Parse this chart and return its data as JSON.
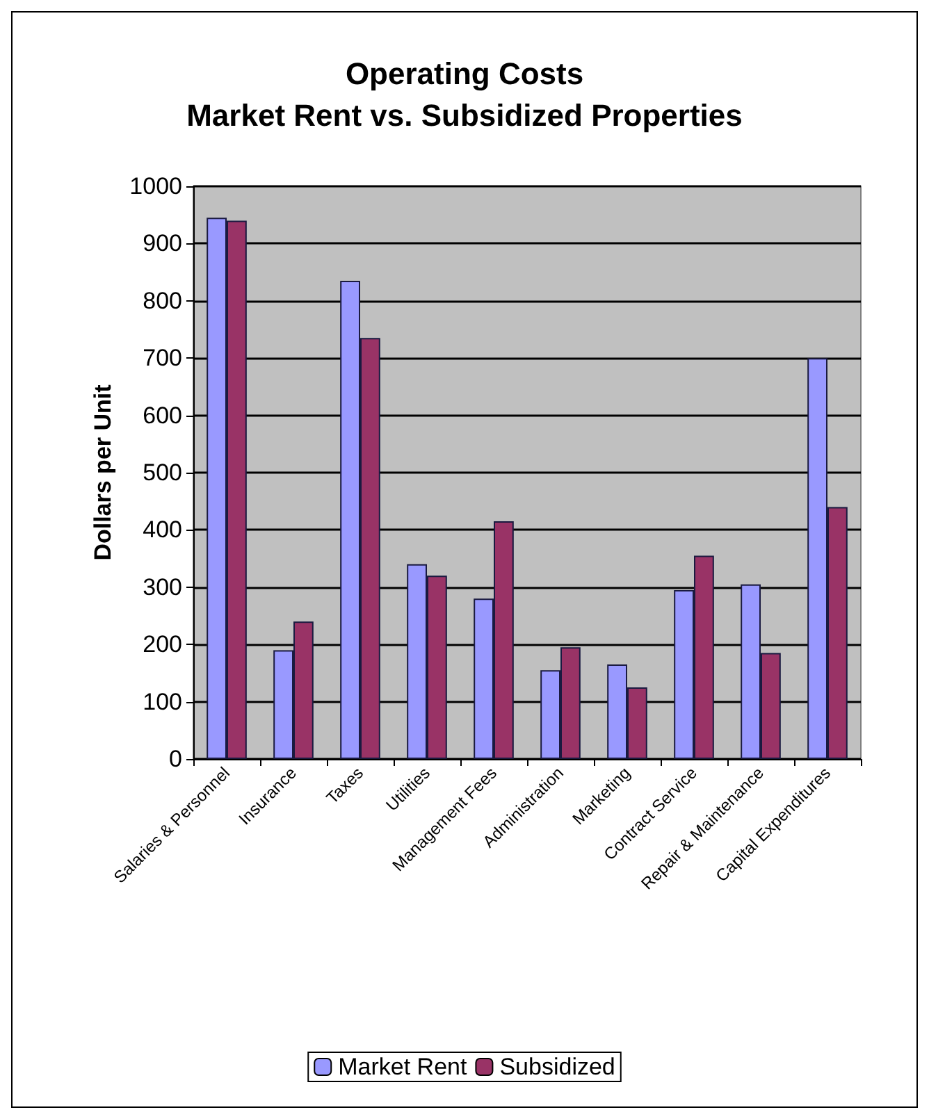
{
  "chart_data": {
    "type": "bar",
    "title": "Operating Costs\nMarket Rent vs. Subsidized Properties",
    "ylabel": "Dollars per Unit",
    "categories": [
      "Salaries & Personnel",
      "Insurance",
      "Taxes",
      "Utilities",
      "Management Fees",
      "Administration",
      "Marketing",
      "Contract Service",
      "Repair & Maintenance",
      "Capital Expenditures"
    ],
    "series": [
      {
        "name": "Market Rent",
        "color": "#9999ff",
        "values": [
          945,
          190,
          835,
          340,
          280,
          155,
          165,
          295,
          305,
          700
        ]
      },
      {
        "name": "Subsidized",
        "color": "#993366",
        "values": [
          940,
          240,
          735,
          320,
          415,
          195,
          125,
          355,
          185,
          440
        ]
      }
    ],
    "ylim": [
      0,
      1000
    ],
    "yticks": [
      0,
      100,
      200,
      300,
      400,
      500,
      600,
      700,
      800,
      900,
      1000
    ],
    "grid": "y",
    "legend": "bottom"
  }
}
